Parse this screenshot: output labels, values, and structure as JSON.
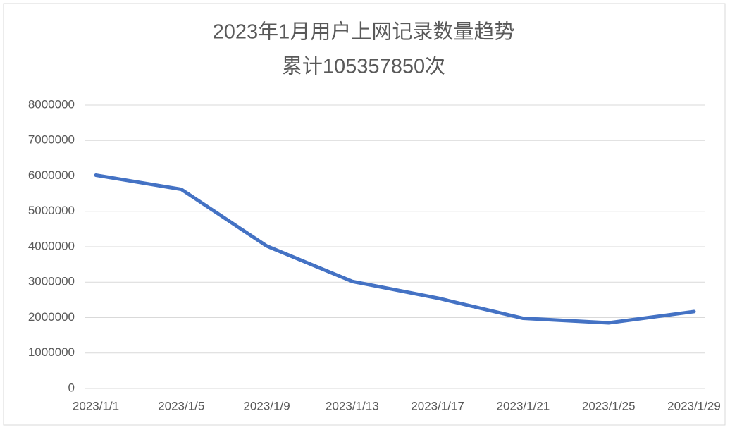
{
  "chart_data": {
    "type": "line",
    "title": "2023年1月用户上网记录数量趋势",
    "subtitle": "累计105357850次",
    "categories": [
      "2023/1/1",
      "2023/1/5",
      "2023/1/9",
      "2023/1/13",
      "2023/1/17",
      "2023/1/21",
      "2023/1/25",
      "2023/1/29"
    ],
    "series": [
      {
        "name": "用户上网记录数量",
        "color": "#4472c4",
        "values": [
          6020000,
          5620000,
          4020000,
          3020000,
          2550000,
          1980000,
          1850000,
          2170000
        ]
      }
    ],
    "ylim": [
      0,
      8000000
    ],
    "yticks": [
      0,
      1000000,
      2000000,
      3000000,
      4000000,
      5000000,
      6000000,
      7000000,
      8000000
    ],
    "grid": true
  }
}
